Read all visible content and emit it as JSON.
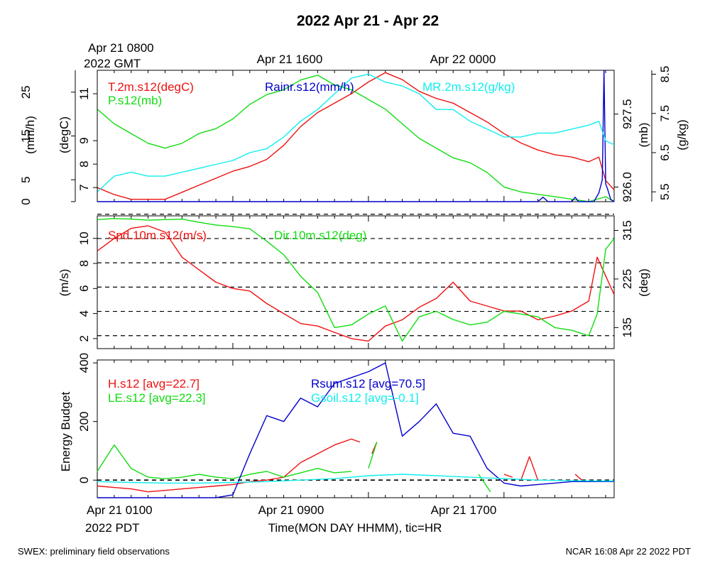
{
  "title": "2022 Apr 21 - Apr 22",
  "top_axis": {
    "first_label_line1": "Apr 21 0800",
    "first_label_line2": "2022 GMT",
    "labels": [
      "Apr 21 1600",
      "Apr 22 0000"
    ]
  },
  "bottom_axis": {
    "first_label_line1": "Apr 21 0100",
    "first_label_line2": "2022 PDT",
    "labels": [
      "Apr 21 0900",
      "Apr 21 1700"
    ],
    "xlabel": "Time(MON DAY HHMM), tic=HR"
  },
  "footer": {
    "left": "SWEX: preliminary field observations",
    "right": "NCAR 16:08 Apr 22 2022 PDT"
  },
  "colors": {
    "red": "#ee1111",
    "green": "#11dd11",
    "blue": "#0000cc",
    "cyan": "#11eeee"
  },
  "chart_data": [
    {
      "type": "line",
      "panel": "top",
      "x_unit": "hours since Apr 21 0100 PDT",
      "xlim": [
        0,
        30.5
      ],
      "axes": [
        {
          "label": "(mm/h)",
          "side": "left-outer",
          "ticks": [
            "0",
            "5",
            "15",
            "25"
          ]
        },
        {
          "label": "(degC)",
          "side": "left-inner",
          "ticks": [
            "7",
            "8",
            "9",
            "11"
          ]
        },
        {
          "label": "(mb)",
          "side": "right-inner",
          "ticks": [
            "926.0",
            "927.5"
          ]
        },
        {
          "label": "(g/kg)",
          "side": "right-outer",
          "ticks": [
            "5.5",
            "6.5",
            "7.5",
            "8.5"
          ]
        }
      ],
      "series": [
        {
          "name": "T.2m.s12(degC)",
          "color": "red",
          "ylim": [
            6.4,
            12.0
          ],
          "x": [
            0,
            1,
            2,
            3,
            4,
            5,
            6,
            7,
            8,
            9,
            10,
            11,
            12,
            13,
            14,
            15,
            16,
            17,
            18,
            19,
            20,
            21,
            22,
            23,
            24,
            25,
            26,
            27,
            28,
            29,
            29.6,
            30.0,
            30.5
          ],
          "values": [
            7.0,
            6.7,
            6.5,
            6.5,
            6.5,
            6.8,
            7.1,
            7.4,
            7.7,
            7.9,
            8.2,
            8.8,
            9.6,
            10.2,
            10.6,
            11.0,
            11.5,
            11.9,
            11.6,
            11.1,
            10.8,
            10.6,
            10.2,
            9.8,
            9.3,
            8.9,
            8.6,
            8.4,
            8.3,
            8.1,
            8.3,
            7.3,
            6.9
          ]
        },
        {
          "name": "P.s12(mb)",
          "color": "green",
          "ylim": [
            925.7,
            928.4
          ],
          "x": [
            0,
            1,
            2,
            3,
            4,
            5,
            6,
            7,
            8,
            9,
            10,
            11,
            12,
            13,
            14,
            15,
            16,
            17,
            18,
            19,
            20,
            21,
            22,
            23,
            24,
            25,
            26,
            27,
            28,
            29,
            30.0,
            30.5
          ],
          "values": [
            927.6,
            927.3,
            927.1,
            926.9,
            926.8,
            926.9,
            927.1,
            927.2,
            927.4,
            927.7,
            927.9,
            928.0,
            928.2,
            928.3,
            928.1,
            928.0,
            927.8,
            927.6,
            927.3,
            927.0,
            926.8,
            926.6,
            926.5,
            926.3,
            926.0,
            925.9,
            925.85,
            925.8,
            925.75,
            925.7,
            925.8,
            925.7
          ]
        },
        {
          "name": "Rainr.s12(mm/h)",
          "color": "blue",
          "ylim": [
            0,
            30
          ],
          "x": [
            0,
            26,
            26.3,
            26.6,
            28,
            28.2,
            28.4,
            29.3,
            29.6,
            29.8,
            29.9,
            30.0,
            30.1,
            30.3,
            30.5
          ],
          "values": [
            0,
            0,
            1,
            0,
            0,
            1,
            0,
            0,
            2,
            5,
            30,
            4,
            3,
            0.5,
            0
          ]
        },
        {
          "name": "MR.2m.s12(g/kg)",
          "color": "cyan",
          "ylim": [
            5.25,
            8.6
          ],
          "x": [
            0,
            1,
            2,
            3,
            4,
            5,
            6,
            7,
            8,
            9,
            10,
            11,
            12,
            13,
            14,
            15,
            16,
            17,
            18,
            19,
            20,
            21,
            22,
            23,
            24,
            25,
            26,
            27,
            28,
            29,
            29.6,
            30.0,
            30.5
          ],
          "values": [
            5.5,
            5.9,
            6.0,
            5.9,
            5.9,
            6.0,
            6.1,
            6.2,
            6.3,
            6.5,
            6.6,
            6.9,
            7.3,
            7.6,
            8.0,
            8.4,
            8.5,
            8.3,
            8.2,
            8.0,
            7.6,
            7.6,
            7.3,
            7.1,
            6.9,
            6.9,
            7.0,
            7.0,
            7.1,
            7.2,
            7.3,
            6.8,
            6.7
          ]
        }
      ]
    },
    {
      "type": "line",
      "panel": "middle",
      "x_unit": "hours since Apr 21 0100 PDT",
      "xlim": [
        0,
        30.5
      ],
      "axes": [
        {
          "label": "(m/s)",
          "side": "left",
          "ticks": [
            "2",
            "4",
            "6",
            "8",
            "10"
          ]
        },
        {
          "label": "(deg)",
          "side": "right",
          "ticks": [
            "135",
            "225",
            "315"
          ]
        }
      ],
      "gridlines_deg": [
        120,
        165,
        210,
        255,
        300,
        345
      ],
      "series": [
        {
          "name": "Spd.10m.s12(m/s)",
          "color": "red",
          "ylim": [
            1.2,
            11.8
          ],
          "x": [
            0,
            1,
            2,
            3,
            4,
            5,
            6,
            7,
            8,
            9,
            10,
            11,
            12,
            13,
            14,
            15,
            16,
            17,
            18,
            19,
            20,
            21,
            22,
            23,
            24,
            25,
            26,
            27,
            28,
            29,
            29.5,
            30.0,
            30.5
          ],
          "values": [
            9.0,
            10.0,
            10.8,
            11.0,
            10.5,
            8.5,
            7.5,
            6.5,
            6.0,
            5.8,
            4.8,
            4.0,
            3.2,
            3.0,
            2.5,
            2.0,
            1.8,
            3.0,
            3.5,
            4.5,
            5.2,
            6.5,
            5.0,
            4.6,
            4.2,
            4.2,
            3.5,
            3.8,
            4.2,
            5.0,
            8.5,
            7.0,
            5.5
          ]
        },
        {
          "name": "Dir.10m.s12(deg)",
          "color": "green",
          "ylim": [
            96,
            342
          ],
          "x": [
            0,
            1,
            2,
            3,
            4,
            5,
            6,
            7,
            8,
            9,
            10,
            11,
            12,
            13,
            14,
            15,
            16,
            17,
            18,
            19,
            20,
            21,
            22,
            23,
            24,
            25,
            26,
            27,
            28,
            29,
            29.5,
            30.0,
            30.5
          ],
          "values": [
            335,
            337,
            336,
            334,
            335,
            336,
            330,
            325,
            322,
            318,
            295,
            270,
            230,
            200,
            135,
            140,
            160,
            175,
            110,
            155,
            165,
            150,
            140,
            145,
            165,
            160,
            155,
            135,
            130,
            120,
            160,
            280,
            300
          ]
        }
      ]
    },
    {
      "type": "line",
      "panel": "bottom",
      "x_unit": "hours since Apr 21 0100 PDT",
      "xlim": [
        0,
        30.5
      ],
      "ylim": [
        -60,
        410
      ],
      "ylabel": "Energy Budget",
      "yticks": [
        0,
        200,
        400
      ],
      "zero_line": true,
      "series": [
        {
          "name": "H.s12 [avg=22.7]",
          "color": "red",
          "x": [
            0,
            1,
            2,
            3,
            4,
            5,
            6,
            7,
            8,
            9,
            10,
            11,
            12,
            13,
            14,
            15,
            15.5,
            null,
            16.2,
            16.5,
            null,
            24.0,
            24.5,
            null,
            25.0,
            25.5,
            26.0,
            null,
            28.2,
            28.6
          ],
          "values": [
            -20,
            -25,
            -30,
            -40,
            -35,
            -30,
            -25,
            -20,
            -15,
            -5,
            0,
            10,
            60,
            90,
            120,
            140,
            130,
            null,
            90,
            130,
            null,
            20,
            10,
            null,
            0,
            80,
            0,
            null,
            20,
            0
          ]
        },
        {
          "name": "LE.s12 [avg=22.3]",
          "color": "green",
          "x": [
            0,
            1,
            2,
            3,
            4,
            5,
            6,
            7,
            8,
            9,
            10,
            11,
            12,
            13,
            14,
            15,
            null,
            16.0,
            16.5,
            null,
            22.5,
            23.2
          ],
          "values": [
            30,
            120,
            40,
            10,
            5,
            10,
            20,
            10,
            5,
            20,
            30,
            10,
            25,
            40,
            25,
            30,
            null,
            40,
            130,
            null,
            20,
            -40
          ]
        },
        {
          "name": "Rsum.s12 [avg=70.5]",
          "color": "blue",
          "x": [
            0,
            1,
            2,
            3,
            4,
            5,
            6,
            7,
            8,
            9,
            10,
            11,
            12,
            13,
            14,
            15,
            16,
            17,
            18,
            19,
            20,
            21,
            22,
            23,
            24,
            25,
            26,
            27,
            28,
            29,
            30,
            30.5
          ],
          "values": [
            -60,
            -60,
            -60,
            -60,
            -60,
            -60,
            -60,
            -60,
            -50,
            90,
            220,
            200,
            280,
            250,
            330,
            350,
            370,
            400,
            150,
            200,
            260,
            160,
            150,
            40,
            -10,
            -20,
            -15,
            -10,
            -5,
            -5,
            -5,
            -5
          ]
        },
        {
          "name": "Gsoil.s12 [avg=-0.1]",
          "color": "cyan",
          "x": [
            0,
            2,
            4,
            6,
            8,
            10,
            12,
            14,
            16,
            18,
            20,
            22,
            24,
            26,
            28,
            30,
            30.5
          ],
          "values": [
            -5,
            -8,
            -10,
            -10,
            -8,
            -5,
            0,
            5,
            15,
            20,
            15,
            10,
            5,
            0,
            -2,
            -3,
            -3
          ]
        }
      ]
    }
  ]
}
